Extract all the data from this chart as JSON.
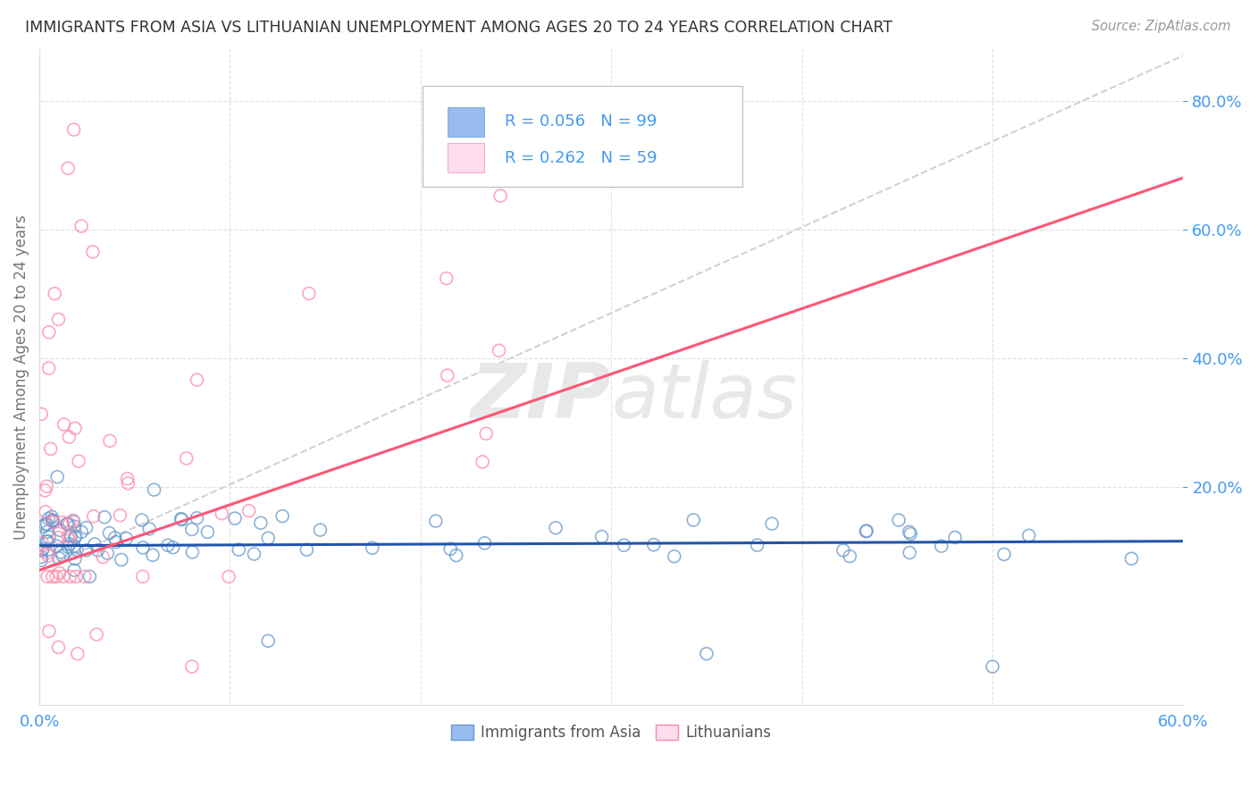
{
  "title": "IMMIGRANTS FROM ASIA VS LITHUANIAN UNEMPLOYMENT AMONG AGES 20 TO 24 YEARS CORRELATION CHART",
  "source": "Source: ZipAtlas.com",
  "ylabel": "Unemployment Among Ages 20 to 24 years",
  "legend_blue_label": "Immigrants from Asia",
  "legend_pink_label": "Lithuanians",
  "blue_color": "#99BBEE",
  "pink_color": "#FFAACC",
  "blue_edge_color": "#6699CC",
  "pink_edge_color": "#FF88AA",
  "blue_line_color": "#2255AA",
  "pink_line_color": "#FF5577",
  "gray_line_color": "#CCCCCC",
  "title_color": "#333333",
  "source_color": "#999999",
  "tick_color": "#4499EE",
  "grid_color": "#E0E0E0",
  "watermark_color": "#E8E8E8",
  "xlim": [
    0.0,
    0.6
  ],
  "ylim": [
    -0.14,
    0.88
  ],
  "yticks": [
    0.8,
    0.6,
    0.4,
    0.2
  ],
  "ytick_labels": [
    "80.0%",
    "60.0%",
    "40.0%",
    "20.0%"
  ],
  "blue_line_x": [
    0.0,
    0.6
  ],
  "blue_line_y": [
    0.108,
    0.115
  ],
  "pink_line_x": [
    0.0,
    0.6
  ],
  "pink_line_y": [
    0.07,
    0.68
  ],
  "gray_line_x": [
    0.0,
    0.6
  ],
  "gray_line_y": [
    0.07,
    0.87
  ]
}
